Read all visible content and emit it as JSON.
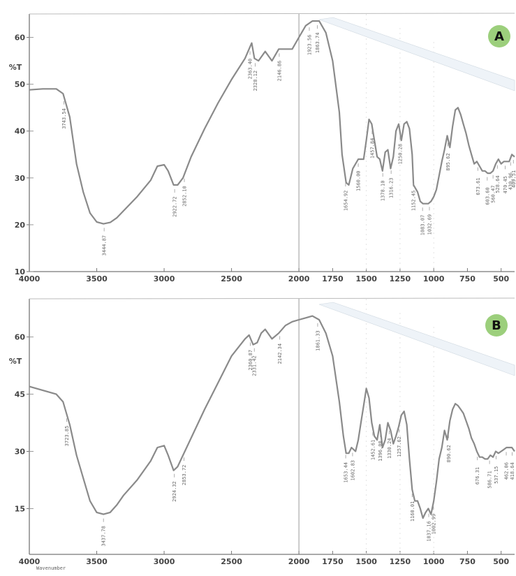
{
  "chart_data": [
    {
      "type": "line",
      "panel_label": "A",
      "ylabel": "%T",
      "xlim": [
        4000,
        400
      ],
      "ylim": [
        10,
        65
      ],
      "x_ticks": [
        4000,
        3500,
        3000,
        2500,
        2000,
        1750,
        1500,
        1250,
        1000,
        750,
        500
      ],
      "y_ticks": [
        10,
        20,
        30,
        40,
        50,
        60
      ],
      "series": [
        {
          "x": [
            4000,
            3900,
            3800,
            3750,
            3700,
            3650,
            3600,
            3550,
            3500,
            3450,
            3400,
            3350,
            3300,
            3200,
            3100,
            3050,
            3000,
            2970,
            2950,
            2930,
            2900,
            2860,
            2800,
            2700,
            2600,
            2500,
            2400,
            2350,
            2330,
            2300,
            2250,
            2200,
            2150,
            2100,
            2050,
            2000,
            1950,
            1900,
            1850,
            1800,
            1750,
            1700,
            1680,
            1650,
            1630,
            1600,
            1560,
            1520,
            1500,
            1480,
            1460,
            1440,
            1420,
            1400,
            1380,
            1360,
            1340,
            1320,
            1300,
            1280,
            1260,
            1240,
            1220,
            1200,
            1180,
            1160,
            1150,
            1140,
            1120,
            1100,
            1080,
            1060,
            1040,
            1020,
            1000,
            980,
            960,
            940,
            920,
            900,
            880,
            860,
            840,
            820,
            800,
            780,
            760,
            740,
            720,
            700,
            680,
            660,
            640,
            620,
            600,
            580,
            560,
            540,
            520,
            500,
            480,
            460,
            440,
            420,
            400
          ],
          "y": [
            48.8,
            49,
            49,
            48,
            43,
            33,
            27,
            22.5,
            20.6,
            20.2,
            20.5,
            21.5,
            23,
            26,
            29.5,
            32.5,
            32.8,
            31.5,
            30,
            28.5,
            28.5,
            30,
            34.5,
            40.5,
            46,
            51,
            55.5,
            58.8,
            55.5,
            55,
            57,
            55,
            57.5,
            57.5,
            57.5,
            60,
            62.5,
            63.5,
            63.5,
            61,
            55,
            44,
            35,
            29,
            28.5,
            32,
            34,
            34,
            38,
            42.5,
            41.5,
            38,
            34.5,
            34,
            31.5,
            35.5,
            36,
            32,
            34.5,
            40,
            41.5,
            38,
            41.5,
            42,
            40.5,
            35,
            28.5,
            28,
            27,
            25,
            24.5,
            24.5,
            24.5,
            25,
            26,
            27.5,
            30.5,
            33.5,
            36,
            39,
            36.5,
            41,
            44.5,
            45,
            43.5,
            41.5,
            39.5,
            37,
            35,
            33,
            33.5,
            32.5,
            31.5,
            31.5,
            31,
            31,
            31.5,
            33,
            34,
            33,
            33.5,
            33.5,
            33.5,
            35,
            34.5
          ]
        }
      ],
      "peak_labels": [
        {
          "x": 3743,
          "text": "3743.54"
        },
        {
          "x": 3445,
          "text": "3444.87"
        },
        {
          "x": 2922,
          "text": "2922.72"
        },
        {
          "x": 2850,
          "text": "2852.10"
        },
        {
          "x": 2363,
          "text": "2363.40"
        },
        {
          "x": 2324,
          "text": "2328.12"
        },
        {
          "x": 2146,
          "text": "2146.86"
        },
        {
          "x": 1923,
          "text": "1923.56"
        },
        {
          "x": 1863,
          "text": "1863.74"
        },
        {
          "x": 1654,
          "text": "1654.92"
        },
        {
          "x": 1560,
          "text": "1560.00"
        },
        {
          "x": 1457,
          "text": "1457.84"
        },
        {
          "x": 1378,
          "text": "1378.10"
        },
        {
          "x": 1316,
          "text": "1316.23"
        },
        {
          "x": 1250,
          "text": "1250.28"
        },
        {
          "x": 1152,
          "text": "1152.45"
        },
        {
          "x": 1083,
          "text": "1083.07"
        },
        {
          "x": 1032,
          "text": "1032.69"
        },
        {
          "x": 895,
          "text": "895.62"
        },
        {
          "x": 673,
          "text": "673.61"
        },
        {
          "x": 603,
          "text": "603.60"
        },
        {
          "x": 560,
          "text": "560.47"
        },
        {
          "x": 528,
          "text": "528.64"
        },
        {
          "x": 470,
          "text": "470.45"
        },
        {
          "x": 430,
          "text": "430.96"
        },
        {
          "x": 409,
          "text": "409.51"
        }
      ]
    },
    {
      "type": "line",
      "panel_label": "B",
      "ylabel": "%T",
      "xlim": [
        4000,
        400
      ],
      "ylim": [
        3,
        70
      ],
      "x_ticks": [
        4000,
        3500,
        3000,
        2500,
        2000,
        1750,
        1500,
        1250,
        1000,
        750,
        500
      ],
      "y_ticks": [
        15,
        30,
        45,
        60
      ],
      "x_axis_title": "Wavenumber",
      "series": [
        {
          "x": [
            4000,
            3900,
            3800,
            3750,
            3700,
            3650,
            3600,
            3550,
            3500,
            3450,
            3400,
            3350,
            3300,
            3200,
            3100,
            3050,
            3000,
            2970,
            2950,
            2930,
            2900,
            2860,
            2800,
            2700,
            2600,
            2500,
            2400,
            2370,
            2340,
            2310,
            2280,
            2250,
            2200,
            2150,
            2100,
            2050,
            2000,
            1950,
            1900,
            1850,
            1800,
            1750,
            1700,
            1670,
            1650,
            1630,
            1610,
            1580,
            1560,
            1540,
            1520,
            1500,
            1480,
            1460,
            1440,
            1420,
            1400,
            1380,
            1360,
            1340,
            1320,
            1300,
            1280,
            1260,
            1240,
            1220,
            1200,
            1180,
            1160,
            1140,
            1120,
            1100,
            1080,
            1060,
            1040,
            1020,
            1000,
            980,
            960,
            940,
            920,
            900,
            880,
            860,
            840,
            820,
            800,
            780,
            760,
            740,
            720,
            700,
            680,
            660,
            640,
            620,
            600,
            580,
            560,
            540,
            520,
            500,
            480,
            460,
            440,
            420,
            400
          ],
          "y": [
            47,
            46,
            45,
            43,
            37,
            29,
            23,
            17,
            14,
            13.5,
            14,
            16,
            18.5,
            22.5,
            27.5,
            31,
            31.5,
            29,
            27,
            25,
            26,
            29,
            33.5,
            41,
            48,
            55,
            59.5,
            60.5,
            58,
            58.5,
            61,
            62,
            59.5,
            61,
            63,
            64,
            64.5,
            65,
            65.5,
            64.5,
            61,
            55,
            43,
            34,
            29.5,
            29.5,
            31,
            30,
            33,
            37.5,
            42,
            46.5,
            44,
            37.5,
            34,
            33,
            37,
            31,
            33,
            37.5,
            35.5,
            32,
            34,
            36.5,
            39.5,
            40.5,
            37,
            28,
            20,
            17,
            17,
            15,
            12.5,
            14,
            15,
            13.5,
            17,
            22,
            28,
            31,
            35.5,
            33,
            38,
            41,
            42.5,
            42,
            41,
            40,
            38,
            36,
            33.5,
            32,
            30,
            28.5,
            28.5,
            28,
            28,
            29,
            28.5,
            30,
            29.5,
            30,
            30.5,
            31,
            31,
            31,
            30
          ]
        }
      ],
      "peak_labels": [
        {
          "x": 3723,
          "text": "3723.85"
        },
        {
          "x": 3450,
          "text": "3437.78"
        },
        {
          "x": 2924,
          "text": "2924.32"
        },
        {
          "x": 2853,
          "text": "2853.72"
        },
        {
          "x": 2360,
          "text": "2360.87"
        },
        {
          "x": 2331,
          "text": "2331.42"
        },
        {
          "x": 2142,
          "text": "2142.34"
        },
        {
          "x": 1861,
          "text": "1861.33"
        },
        {
          "x": 1653,
          "text": "1653.44"
        },
        {
          "x": 1602,
          "text": "1602.83"
        },
        {
          "x": 1452,
          "text": "1452.61"
        },
        {
          "x": 1396,
          "text": "1396.00"
        },
        {
          "x": 1330,
          "text": "1330.24"
        },
        {
          "x": 1257,
          "text": "1257.62"
        },
        {
          "x": 1160,
          "text": "1160.01"
        },
        {
          "x": 1037,
          "text": "1037.16"
        },
        {
          "x": 1002,
          "text": "1002.99"
        },
        {
          "x": 890,
          "text": "890.62"
        },
        {
          "x": 676,
          "text": "676.31"
        },
        {
          "x": 586,
          "text": "586.71"
        },
        {
          "x": 537,
          "text": "537.15"
        },
        {
          "x": 462,
          "text": "462.06"
        },
        {
          "x": 418,
          "text": "418.64"
        }
      ]
    }
  ],
  "badge_color": "#9ccf7c"
}
